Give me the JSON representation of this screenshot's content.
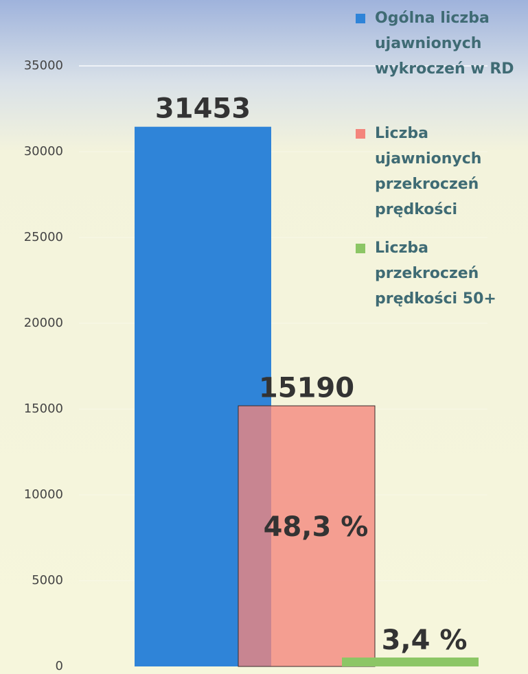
{
  "chart_data": {
    "type": "bar",
    "categories": [
      null
    ],
    "series": [
      {
        "name": "Ogólna liczba ujawnionych wykroczeń w RD",
        "color": "#2f84d8",
        "values": [
          31453
        ]
      },
      {
        "name": "Liczba ujawnionych przekroczeń prędkości",
        "color": "#f4857c",
        "values": [
          15190
        ]
      },
      {
        "name": "Liczba przekroczeń prędkości 50+",
        "color": "#8cc665",
        "values": [
          520
        ]
      }
    ],
    "annotations": [
      "48,3 %",
      "3,4 %"
    ],
    "ylim": [
      0,
      35000
    ],
    "yticks": [
      0,
      5000,
      10000,
      15000,
      20000,
      25000,
      30000,
      35000
    ],
    "grid": true
  }
}
